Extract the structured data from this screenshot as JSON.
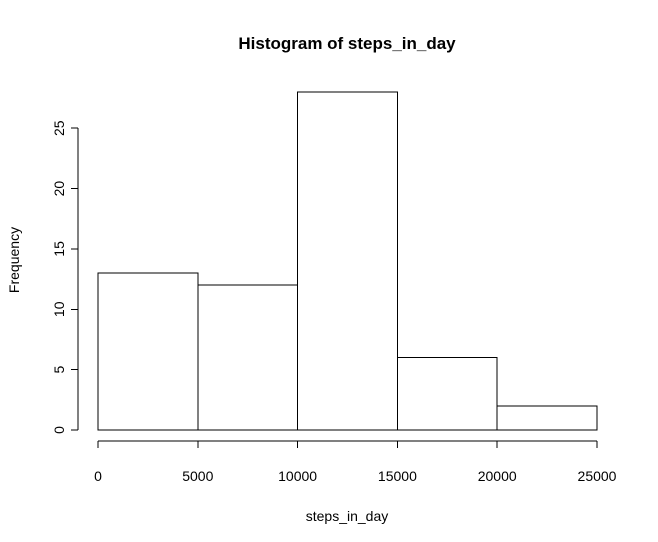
{
  "chart_data": {
    "type": "bar",
    "subtype": "histogram",
    "title": "Histogram of steps_in_day",
    "xlabel": "steps_in_day",
    "ylabel": "Frequency",
    "bins": [
      {
        "start": 0,
        "end": 5000,
        "count": 13
      },
      {
        "start": 5000,
        "end": 10000,
        "count": 12
      },
      {
        "start": 10000,
        "end": 15000,
        "count": 28
      },
      {
        "start": 15000,
        "end": 20000,
        "count": 6
      },
      {
        "start": 20000,
        "end": 25000,
        "count": 2
      }
    ],
    "xlim": [
      0,
      25000
    ],
    "ylim": [
      0,
      28
    ],
    "x_ticks": [
      0,
      5000,
      10000,
      15000,
      20000,
      25000
    ],
    "y_ticks": [
      0,
      5,
      10,
      15,
      20,
      25
    ],
    "bar_fill": "#ffffff",
    "bar_stroke": "#000000",
    "grid": false,
    "legend": "none"
  }
}
